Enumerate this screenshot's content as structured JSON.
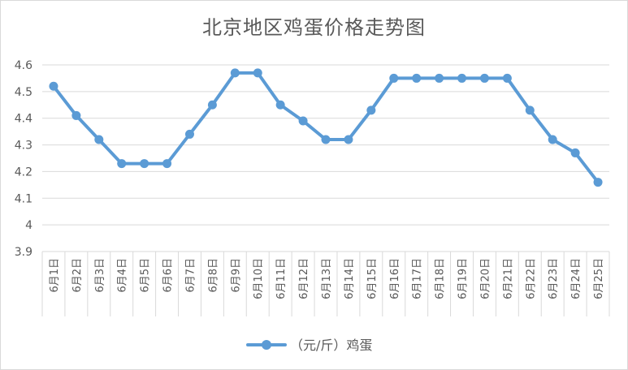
{
  "chart_data": {
    "type": "line",
    "title": "北京地区鸡蛋价格走势图",
    "categories": [
      "6月1日",
      "6月2日",
      "6月3日",
      "6月4日",
      "6月5日",
      "6月6日",
      "6月7日",
      "6月8日",
      "6月9日",
      "6月10日",
      "6月11日",
      "6月12日",
      "6月13日",
      "6月14日",
      "6月15日",
      "6月16日",
      "6月17日",
      "6月18日",
      "6月19日",
      "6月20日",
      "6月21日",
      "6月22日",
      "6月23日",
      "6月24日",
      "6月25日"
    ],
    "series": [
      {
        "name": "（元/斤）鸡蛋",
        "color": "#5b9bd5",
        "values": [
          4.52,
          4.41,
          4.32,
          4.23,
          4.23,
          4.23,
          4.34,
          4.45,
          4.57,
          4.57,
          4.45,
          4.39,
          4.32,
          4.32,
          4.43,
          4.55,
          4.55,
          4.55,
          4.55,
          4.55,
          4.55,
          4.43,
          4.32,
          4.27,
          4.16
        ]
      }
    ],
    "ylim": [
      3.9,
      4.6
    ],
    "yticks": [
      "3.9",
      "4",
      "4.1",
      "4.2",
      "4.3",
      "4.4",
      "4.5",
      "4.6"
    ],
    "grid": true,
    "legend_position": "bottom",
    "colors": {
      "gridline": "#d9d9d9",
      "axis_text": "#595959"
    }
  }
}
